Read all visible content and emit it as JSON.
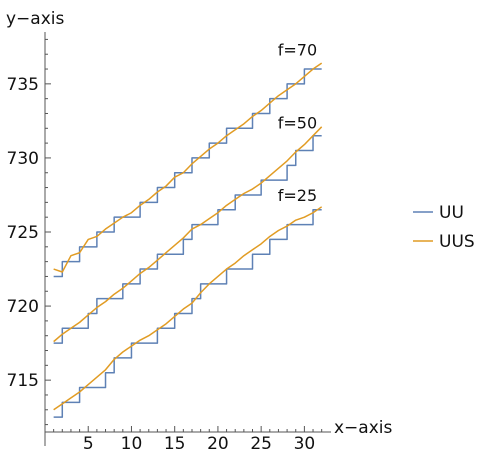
{
  "chart_data": {
    "type": "line",
    "xlabel": "x−axis",
    "ylabel": "y−axis",
    "xlim": [
      0,
      32.5
    ],
    "ylim": [
      711.5,
      738.5
    ],
    "x_ticks": [
      5,
      10,
      15,
      20,
      25,
      30
    ],
    "y_ticks": [
      715,
      720,
      725,
      730,
      735
    ],
    "grid": false,
    "legend_position": "right",
    "legend": [
      "UU",
      "UUS"
    ],
    "annotations": [
      {
        "text": "f=70",
        "x": 29.2,
        "y": 736.9
      },
      {
        "text": "f=50",
        "x": 29.2,
        "y": 732.0
      },
      {
        "text": "f=25",
        "x": 29.2,
        "y": 727.1
      }
    ],
    "colors": {
      "UU": "#5E81B5",
      "UUS": "#E19C24"
    },
    "series": [
      {
        "name": "UU",
        "group": "f=70",
        "style": "step",
        "x": [
          1,
          2,
          3,
          4,
          5,
          6,
          7,
          8,
          9,
          10,
          11,
          12,
          13,
          14,
          15,
          16,
          17,
          18,
          19,
          20,
          21,
          22,
          23,
          24,
          25,
          26,
          27,
          28,
          29,
          30,
          31,
          32
        ],
        "y": [
          722.0,
          723.0,
          723.0,
          724.0,
          724.0,
          725.0,
          725.0,
          726.0,
          726.0,
          726.0,
          727.0,
          727.0,
          728.0,
          728.0,
          729.0,
          729.0,
          730.0,
          730.0,
          731.0,
          731.0,
          732.0,
          732.0,
          732.0,
          733.0,
          733.0,
          734.0,
          734.0,
          735.0,
          735.0,
          736.0,
          736.0,
          736.0
        ]
      },
      {
        "name": "UUS",
        "group": "f=70",
        "style": "smooth",
        "x": [
          1,
          2,
          3,
          4,
          5,
          6,
          7,
          8,
          9,
          10,
          11,
          12,
          13,
          14,
          15,
          16,
          17,
          18,
          19,
          20,
          21,
          22,
          23,
          24,
          25,
          26,
          27,
          28,
          29,
          30,
          31,
          32
        ],
        "y": [
          722.5,
          722.3,
          723.4,
          723.6,
          724.5,
          724.7,
          725.2,
          725.6,
          726.0,
          726.3,
          726.8,
          727.2,
          727.7,
          728.1,
          728.7,
          729.0,
          729.6,
          730.1,
          730.6,
          731.0,
          731.5,
          731.9,
          732.3,
          732.8,
          733.2,
          733.7,
          734.2,
          734.6,
          735.0,
          735.5,
          736.0,
          736.4
        ]
      },
      {
        "name": "UU",
        "group": "f=50",
        "style": "step",
        "x": [
          1,
          2,
          3,
          4,
          5,
          6,
          7,
          8,
          9,
          10,
          11,
          12,
          13,
          14,
          15,
          16,
          17,
          18,
          19,
          20,
          21,
          22,
          23,
          24,
          25,
          26,
          27,
          28,
          29,
          30,
          31,
          32
        ],
        "y": [
          717.5,
          718.5,
          718.5,
          718.5,
          719.5,
          720.5,
          720.5,
          720.5,
          721.5,
          721.5,
          722.5,
          722.5,
          723.5,
          723.5,
          723.5,
          724.5,
          725.5,
          725.5,
          725.5,
          726.5,
          726.5,
          727.5,
          727.5,
          727.5,
          728.5,
          728.5,
          728.5,
          729.5,
          730.5,
          730.5,
          731.5,
          731.5
        ]
      },
      {
        "name": "UUS",
        "group": "f=50",
        "style": "smooth",
        "x": [
          1,
          2,
          3,
          4,
          5,
          6,
          7,
          8,
          9,
          10,
          11,
          12,
          13,
          14,
          15,
          16,
          17,
          18,
          19,
          20,
          21,
          22,
          23,
          24,
          25,
          26,
          27,
          28,
          29,
          30,
          31,
          32
        ],
        "y": [
          717.6,
          718.1,
          718.5,
          718.9,
          719.4,
          719.9,
          720.3,
          720.8,
          721.2,
          721.7,
          722.2,
          722.6,
          723.1,
          723.6,
          724.1,
          724.6,
          725.2,
          725.5,
          725.9,
          726.3,
          726.8,
          727.2,
          727.6,
          727.9,
          728.3,
          728.8,
          729.3,
          729.8,
          730.4,
          730.9,
          731.5,
          732.1
        ]
      },
      {
        "name": "UU",
        "group": "f=25",
        "style": "step",
        "x": [
          1,
          2,
          3,
          4,
          5,
          6,
          7,
          8,
          9,
          10,
          11,
          12,
          13,
          14,
          15,
          16,
          17,
          18,
          19,
          20,
          21,
          22,
          23,
          24,
          25,
          26,
          27,
          28,
          29,
          30,
          31,
          32
        ],
        "y": [
          712.5,
          713.5,
          713.5,
          714.5,
          714.5,
          714.5,
          715.5,
          716.5,
          716.5,
          717.5,
          717.5,
          717.5,
          718.5,
          718.5,
          719.5,
          719.5,
          720.5,
          721.5,
          721.5,
          721.5,
          722.5,
          722.5,
          722.5,
          723.5,
          723.5,
          724.5,
          724.5,
          725.5,
          725.5,
          725.5,
          726.5,
          726.5
        ]
      },
      {
        "name": "UUS",
        "group": "f=25",
        "style": "smooth",
        "x": [
          1,
          2,
          3,
          4,
          5,
          6,
          7,
          8,
          9,
          10,
          11,
          12,
          13,
          14,
          15,
          16,
          17,
          18,
          19,
          20,
          21,
          22,
          23,
          24,
          25,
          26,
          27,
          28,
          29,
          30,
          31,
          32
        ],
        "y": [
          713.0,
          713.4,
          713.8,
          714.2,
          714.7,
          715.2,
          715.7,
          716.4,
          716.9,
          717.3,
          717.7,
          718.0,
          718.4,
          718.8,
          719.3,
          719.8,
          720.2,
          720.9,
          721.5,
          722.0,
          722.5,
          722.9,
          723.4,
          723.8,
          724.2,
          724.7,
          725.1,
          725.4,
          725.8,
          726.0,
          726.3,
          726.7
        ]
      }
    ]
  }
}
